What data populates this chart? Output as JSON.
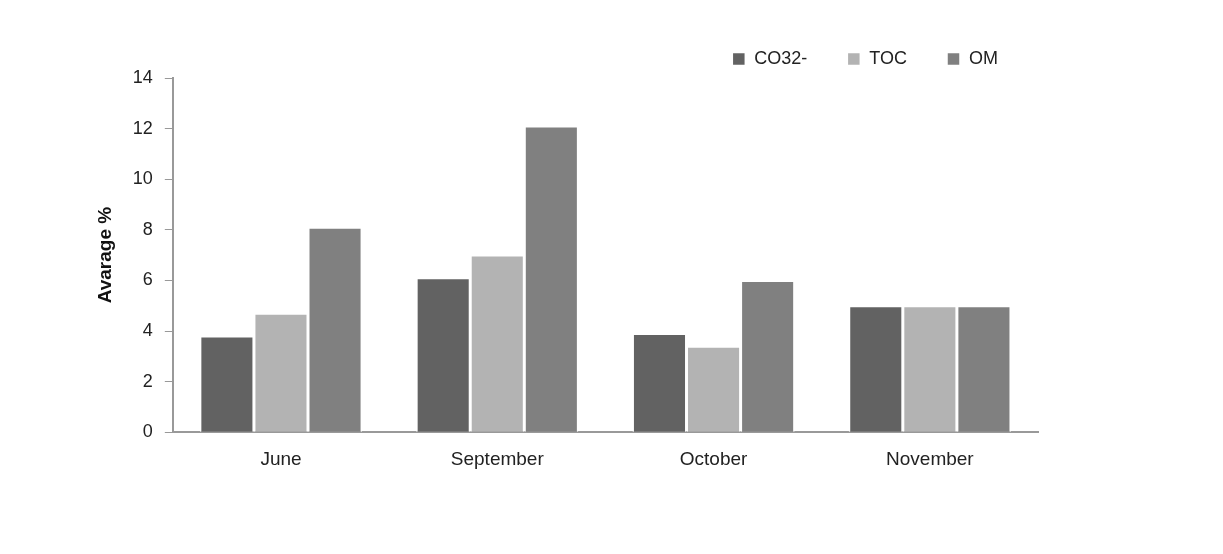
{
  "chart_data": {
    "type": "bar",
    "categories": [
      "June",
      "September",
      "October",
      "November"
    ],
    "ylabel": "Avarage %",
    "series": [
      {
        "name": "CO32-",
        "color": "#626262",
        "values": [
          3.8,
          6.1,
          3.9,
          5.0
        ]
      },
      {
        "name": "TOC",
        "color": "#b3b3b3",
        "values": [
          4.7,
          7.0,
          3.4,
          5.0
        ]
      },
      {
        "name": "OM",
        "color": "#808080",
        "values": [
          8.1,
          12.1,
          6.0,
          5.0
        ]
      }
    ],
    "ylim": [
      0,
      14
    ],
    "yticks": [
      0,
      2,
      4,
      6,
      8,
      10,
      12,
      14
    ],
    "grid": false,
    "legend": "top right"
  }
}
